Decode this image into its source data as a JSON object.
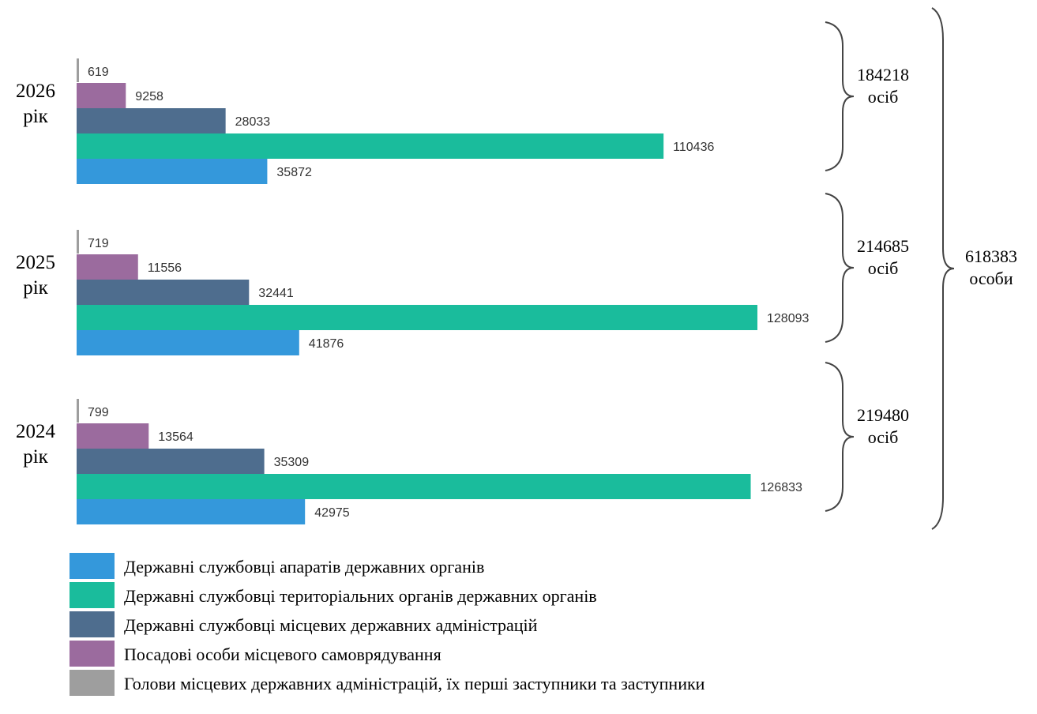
{
  "chart_data": {
    "type": "bar",
    "orientation": "horizontal",
    "series": [
      {
        "name": "Державні службовці апаратів державних органів",
        "color": "#3498db"
      },
      {
        "name": "Державні службовці територіальних органів державних органів",
        "color": "#1abc9c"
      },
      {
        "name": "Державні службовці місцевих державних адміністрацій",
        "color": "#4e6d8e"
      },
      {
        "name": "Посадові особи місцевого самоврядування",
        "color": "#9b6b9e"
      },
      {
        "name": "Голови місцевих державних адміністрацій, їх перші заступники та заступники",
        "color": "#9e9e9e"
      }
    ],
    "groups": [
      {
        "year": "2026",
        "label_line1": "2026",
        "label_line2": "рік",
        "values": [
          35872,
          110436,
          28033,
          9258,
          619
        ],
        "total_value": "184218",
        "total_unit": "осіб"
      },
      {
        "year": "2025",
        "label_line1": "2025",
        "label_line2": "рік",
        "values": [
          41876,
          128093,
          32441,
          11556,
          719
        ],
        "total_value": "214685",
        "total_unit": "осіб"
      },
      {
        "year": "2024",
        "label_line1": "2024",
        "label_line2": "рік",
        "values": [
          42975,
          126833,
          35309,
          13564,
          799
        ],
        "total_value": "219480",
        "total_unit": "осіб"
      }
    ],
    "grand_total": {
      "value": "618383",
      "unit": "особи"
    },
    "legend_position": "bottom",
    "grid": false
  }
}
